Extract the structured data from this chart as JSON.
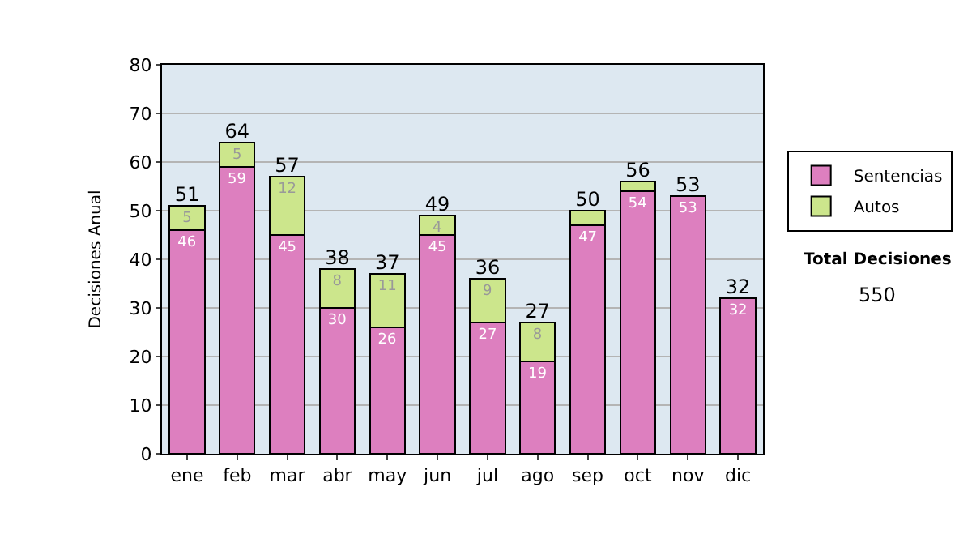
{
  "chart_data": {
    "type": "bar",
    "stacked": true,
    "ylabel": "Decisiones Anual",
    "categories": [
      "ene",
      "feb",
      "mar",
      "abr",
      "may",
      "jun",
      "jul",
      "ago",
      "sep",
      "oct",
      "nov",
      "dic"
    ],
    "series": [
      {
        "name": "Sentencias",
        "color": "#dd7fbf",
        "values": [
          46,
          59,
          45,
          30,
          26,
          45,
          27,
          19,
          47,
          54,
          53,
          32
        ],
        "value_labels": [
          "46",
          "59",
          "45",
          "30",
          "26",
          "45",
          "27",
          "19",
          "47",
          "54",
          "53",
          "32"
        ]
      },
      {
        "name": "Autos",
        "color": "#cce68c",
        "values": [
          5,
          5,
          12,
          8,
          11,
          4,
          9,
          8,
          3,
          2,
          null,
          null
        ],
        "value_labels": [
          "5",
          "5",
          "12",
          "8",
          "11",
          "4",
          "9",
          "8",
          null,
          null,
          null,
          null
        ]
      }
    ],
    "totals": [
      "51",
      "64",
      "57",
      "38",
      "37",
      "49",
      "36",
      "27",
      "50",
      "56",
      "53",
      "32"
    ],
    "ylim": [
      0,
      80
    ],
    "yticks": [
      0,
      10,
      20,
      30,
      40,
      50,
      60,
      70,
      80
    ],
    "grid": "y",
    "legend": "right",
    "annotations": [
      "Total Decisiones",
      "550"
    ]
  }
}
